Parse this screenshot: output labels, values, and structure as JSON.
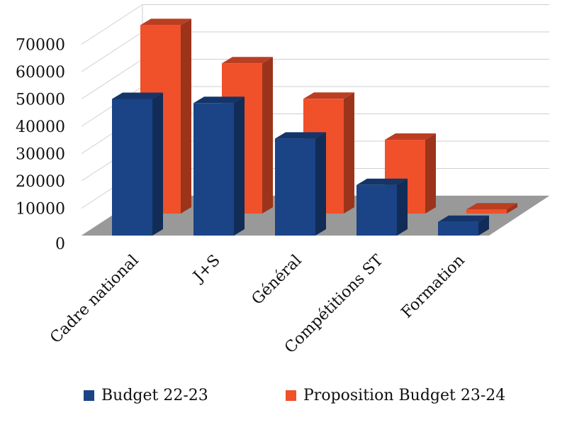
{
  "chart_data": {
    "type": "bar",
    "style": "3d-clustered-column",
    "categories": [
      "Cadre national",
      "J+S",
      "Général",
      "Compétitions ST",
      "Formation"
    ],
    "series": [
      {
        "name": "Budget 22-23",
        "values": [
          50000,
          48500,
          35500,
          18500,
          5000
        ],
        "color": "#1a4486"
      },
      {
        "name": "Proposition Budget 23-24",
        "values": [
          69000,
          55000,
          42000,
          27000,
          1500
        ],
        "color": "#f0502a"
      }
    ],
    "yticks": [
      "0",
      "10000",
      "20000",
      "30000",
      "40000",
      "50000",
      "60000",
      "70000"
    ],
    "ylim": [
      0,
      70000
    ],
    "grid": true,
    "legend_position": "bottom",
    "floor_color": "#999999",
    "grid_color": "#cfcfcf"
  }
}
